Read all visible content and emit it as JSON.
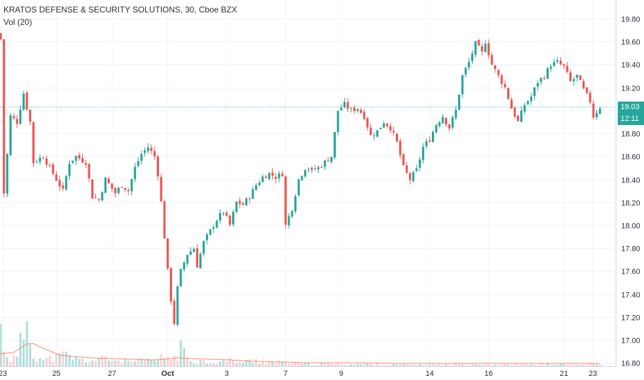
{
  "header": {
    "symbol_title": "KRATOS DEFENSE & SECURITY SOLUTIONS, 30, Cboe BZX",
    "volume_label": "Vol (20)"
  },
  "price_tag": {
    "last_price": "19.03",
    "countdown": "12:11"
  },
  "colors": {
    "up": "#26a69a",
    "down": "#ef5350",
    "up_volume": "#b2dfdb",
    "down_volume": "#ffcdd2",
    "volume_ma": "#ff8a65",
    "price_line": "#26a69a",
    "grid": "#f0f3fa",
    "axis_text": "#2a2e39"
  },
  "chart_data": {
    "type": "candlestick",
    "title": "KRATOS DEFENSE & SECURITY SOLUTIONS, 30, Cboe BZX",
    "interval": "30",
    "exchange": "Cboe BZX",
    "x_ticks": [
      "23",
      "25",
      "27",
      "Oct",
      "3",
      "7",
      "9",
      "14",
      "16",
      "21",
      "23"
    ],
    "y_ticks": [
      "19.80",
      "19.60",
      "19.40",
      "19.20",
      "19.00",
      "18.80",
      "18.60",
      "18.40",
      "18.20",
      "18.00",
      "17.80",
      "17.60",
      "17.40",
      "17.20",
      "17.00",
      "16.80"
    ],
    "ylim": [
      16.79,
      19.89
    ],
    "last_price": 19.03,
    "grid": true,
    "close_path": [
      [
        0,
        19.62
      ],
      [
        1,
        18.28
      ],
      [
        3,
        18.95
      ],
      [
        5,
        18.9
      ],
      [
        7,
        19.15
      ],
      [
        9,
        18.9
      ],
      [
        10,
        18.55
      ],
      [
        13,
        18.6
      ],
      [
        16,
        18.45
      ],
      [
        19,
        18.3
      ],
      [
        21,
        18.55
      ],
      [
        23,
        18.6
      ],
      [
        26,
        18.55
      ],
      [
        28,
        18.25
      ],
      [
        30,
        18.22
      ],
      [
        32,
        18.4
      ],
      [
        35,
        18.28
      ],
      [
        37,
        18.35
      ],
      [
        39,
        18.3
      ],
      [
        41,
        18.5
      ],
      [
        43,
        18.62
      ],
      [
        45,
        18.68
      ],
      [
        47,
        18.6
      ],
      [
        48,
        18.45
      ],
      [
        49,
        18.2
      ],
      [
        50,
        17.9
      ],
      [
        51,
        17.6
      ],
      [
        52,
        17.35
      ],
      [
        53,
        17.15
      ],
      [
        54,
        17.45
      ],
      [
        55,
        17.6
      ],
      [
        57,
        17.75
      ],
      [
        59,
        17.8
      ],
      [
        60,
        17.65
      ],
      [
        62,
        17.85
      ],
      [
        64,
        17.95
      ],
      [
        66,
        18.05
      ],
      [
        68,
        18.12
      ],
      [
        70,
        18.0
      ],
      [
        72,
        18.2
      ],
      [
        74,
        18.18
      ],
      [
        76,
        18.25
      ],
      [
        78,
        18.35
      ],
      [
        80,
        18.42
      ],
      [
        82,
        18.45
      ],
      [
        84,
        18.42
      ],
      [
        86,
        18.45
      ],
      [
        87,
        18.0
      ],
      [
        89,
        18.15
      ],
      [
        91,
        18.4
      ],
      [
        93,
        18.5
      ],
      [
        95,
        18.48
      ],
      [
        97,
        18.5
      ],
      [
        99,
        18.55
      ],
      [
        101,
        18.6
      ],
      [
        103,
        19.0
      ],
      [
        105,
        19.05
      ],
      [
        107,
        19.0
      ],
      [
        109,
        19.02
      ],
      [
        111,
        18.95
      ],
      [
        113,
        18.78
      ],
      [
        115,
        18.82
      ],
      [
        117,
        18.9
      ],
      [
        119,
        18.85
      ],
      [
        121,
        18.72
      ],
      [
        123,
        18.5
      ],
      [
        125,
        18.4
      ],
      [
        127,
        18.48
      ],
      [
        129,
        18.68
      ],
      [
        131,
        18.75
      ],
      [
        133,
        18.88
      ],
      [
        135,
        18.95
      ],
      [
        137,
        18.85
      ],
      [
        139,
        19.0
      ],
      [
        141,
        19.3
      ],
      [
        143,
        19.42
      ],
      [
        145,
        19.58
      ],
      [
        147,
        19.5
      ],
      [
        148,
        19.6
      ],
      [
        150,
        19.4
      ],
      [
        152,
        19.3
      ],
      [
        154,
        19.2
      ],
      [
        156,
        19.02
      ],
      [
        158,
        18.9
      ],
      [
        160,
        19.05
      ],
      [
        162,
        19.12
      ],
      [
        164,
        19.25
      ],
      [
        166,
        19.3
      ],
      [
        168,
        19.4
      ],
      [
        170,
        19.42
      ],
      [
        172,
        19.38
      ],
      [
        174,
        19.25
      ],
      [
        176,
        19.3
      ],
      [
        178,
        19.18
      ],
      [
        180,
        19.08
      ],
      [
        181,
        18.95
      ],
      [
        183,
        19.03
      ]
    ],
    "volume_series": [
      [
        0,
        52
      ],
      [
        1,
        28
      ],
      [
        3,
        10
      ],
      [
        5,
        12
      ],
      [
        8,
        70
      ],
      [
        10,
        20
      ],
      [
        13,
        8
      ],
      [
        16,
        12
      ],
      [
        20,
        16
      ],
      [
        24,
        9
      ],
      [
        28,
        8
      ],
      [
        32,
        11
      ],
      [
        36,
        8
      ],
      [
        40,
        6
      ],
      [
        44,
        8
      ],
      [
        48,
        9
      ],
      [
        50,
        14
      ],
      [
        53,
        12
      ],
      [
        55,
        24
      ],
      [
        58,
        9
      ],
      [
        62,
        7
      ],
      [
        66,
        6
      ],
      [
        70,
        8
      ],
      [
        74,
        6
      ],
      [
        78,
        8
      ],
      [
        82,
        6
      ],
      [
        86,
        5
      ],
      [
        90,
        4
      ],
      [
        94,
        3
      ],
      [
        98,
        3
      ],
      [
        102,
        3
      ],
      [
        106,
        3
      ],
      [
        110,
        3
      ],
      [
        114,
        3
      ],
      [
        118,
        2
      ],
      [
        122,
        2
      ],
      [
        126,
        2
      ],
      [
        130,
        2
      ],
      [
        134,
        2
      ],
      [
        138,
        2
      ],
      [
        142,
        3
      ],
      [
        146,
        3
      ],
      [
        150,
        2
      ],
      [
        154,
        2
      ],
      [
        158,
        2
      ],
      [
        162,
        2
      ],
      [
        166,
        2
      ],
      [
        170,
        3
      ],
      [
        174,
        2
      ],
      [
        178,
        2
      ],
      [
        183,
        3
      ]
    ],
    "volume_ma_path": [
      [
        0,
        18
      ],
      [
        4,
        20
      ],
      [
        8,
        32
      ],
      [
        10,
        33
      ],
      [
        12,
        28
      ],
      [
        15,
        22
      ],
      [
        18,
        16
      ],
      [
        22,
        14
      ],
      [
        28,
        12
      ],
      [
        34,
        11
      ],
      [
        40,
        10
      ],
      [
        46,
        9
      ],
      [
        50,
        10
      ],
      [
        54,
        12
      ],
      [
        58,
        11
      ],
      [
        64,
        10
      ],
      [
        70,
        9
      ],
      [
        78,
        7
      ],
      [
        86,
        6
      ],
      [
        94,
        5
      ],
      [
        100,
        5
      ],
      [
        110,
        5
      ],
      [
        120,
        4
      ],
      [
        130,
        4
      ],
      [
        140,
        4
      ],
      [
        150,
        4
      ],
      [
        160,
        4
      ],
      [
        170,
        4
      ],
      [
        183,
        4
      ]
    ]
  }
}
